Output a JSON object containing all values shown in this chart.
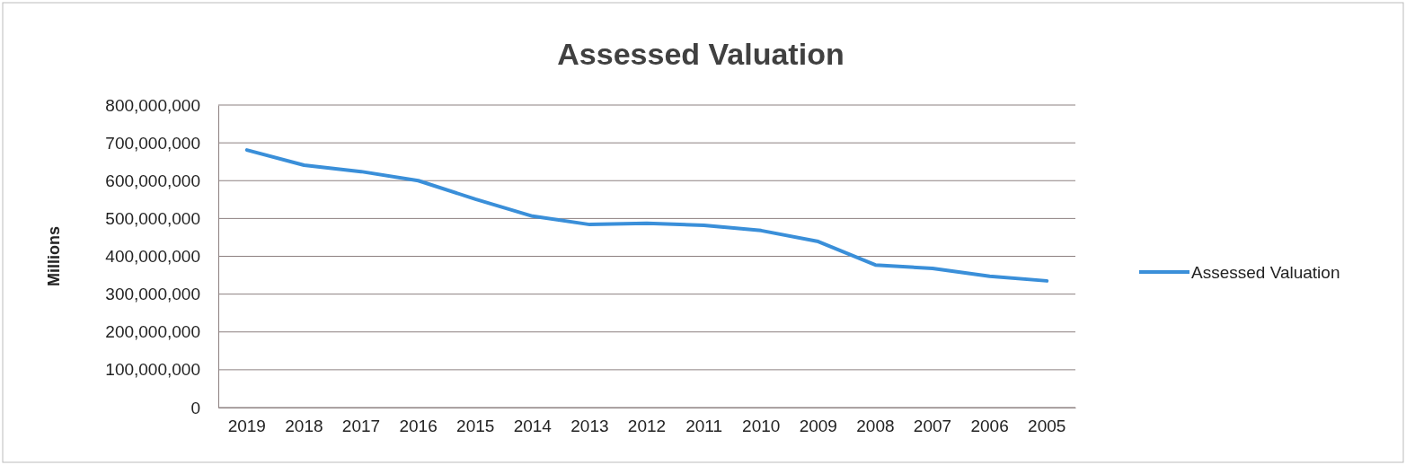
{
  "chart_data": {
    "type": "line",
    "title": "Assessed Valuation",
    "ylabel": "Millions",
    "categories": [
      "2019",
      "2018",
      "2017",
      "2016",
      "2015",
      "2014",
      "2013",
      "2012",
      "2011",
      "2010",
      "2009",
      "2008",
      "2007",
      "2006",
      "2005"
    ],
    "series": [
      {
        "name": "Assessed Valuation",
        "color": "#3a8fd9",
        "values": [
          681000000,
          641000000,
          624000000,
          600000000,
          551000000,
          506000000,
          484000000,
          487000000,
          482000000,
          468000000,
          439000000,
          377000000,
          368000000,
          347000000,
          335000000
        ]
      }
    ],
    "ylim": [
      0,
      800000000
    ],
    "yticks": [
      {
        "value": 0,
        "label": "0"
      },
      {
        "value": 100000000,
        "label": "100,000,000"
      },
      {
        "value": 200000000,
        "label": "200,000,000"
      },
      {
        "value": 300000000,
        "label": "300,000,000"
      },
      {
        "value": 400000000,
        "label": "400,000,000"
      },
      {
        "value": 500000000,
        "label": "500,000,000"
      },
      {
        "value": 600000000,
        "label": "600,000,000"
      },
      {
        "value": 700000000,
        "label": "700,000,000"
      },
      {
        "value": 800000000,
        "label": "800,000,000"
      }
    ],
    "grid": "y",
    "legend": "right",
    "marker": "none",
    "line_style": "solid"
  }
}
